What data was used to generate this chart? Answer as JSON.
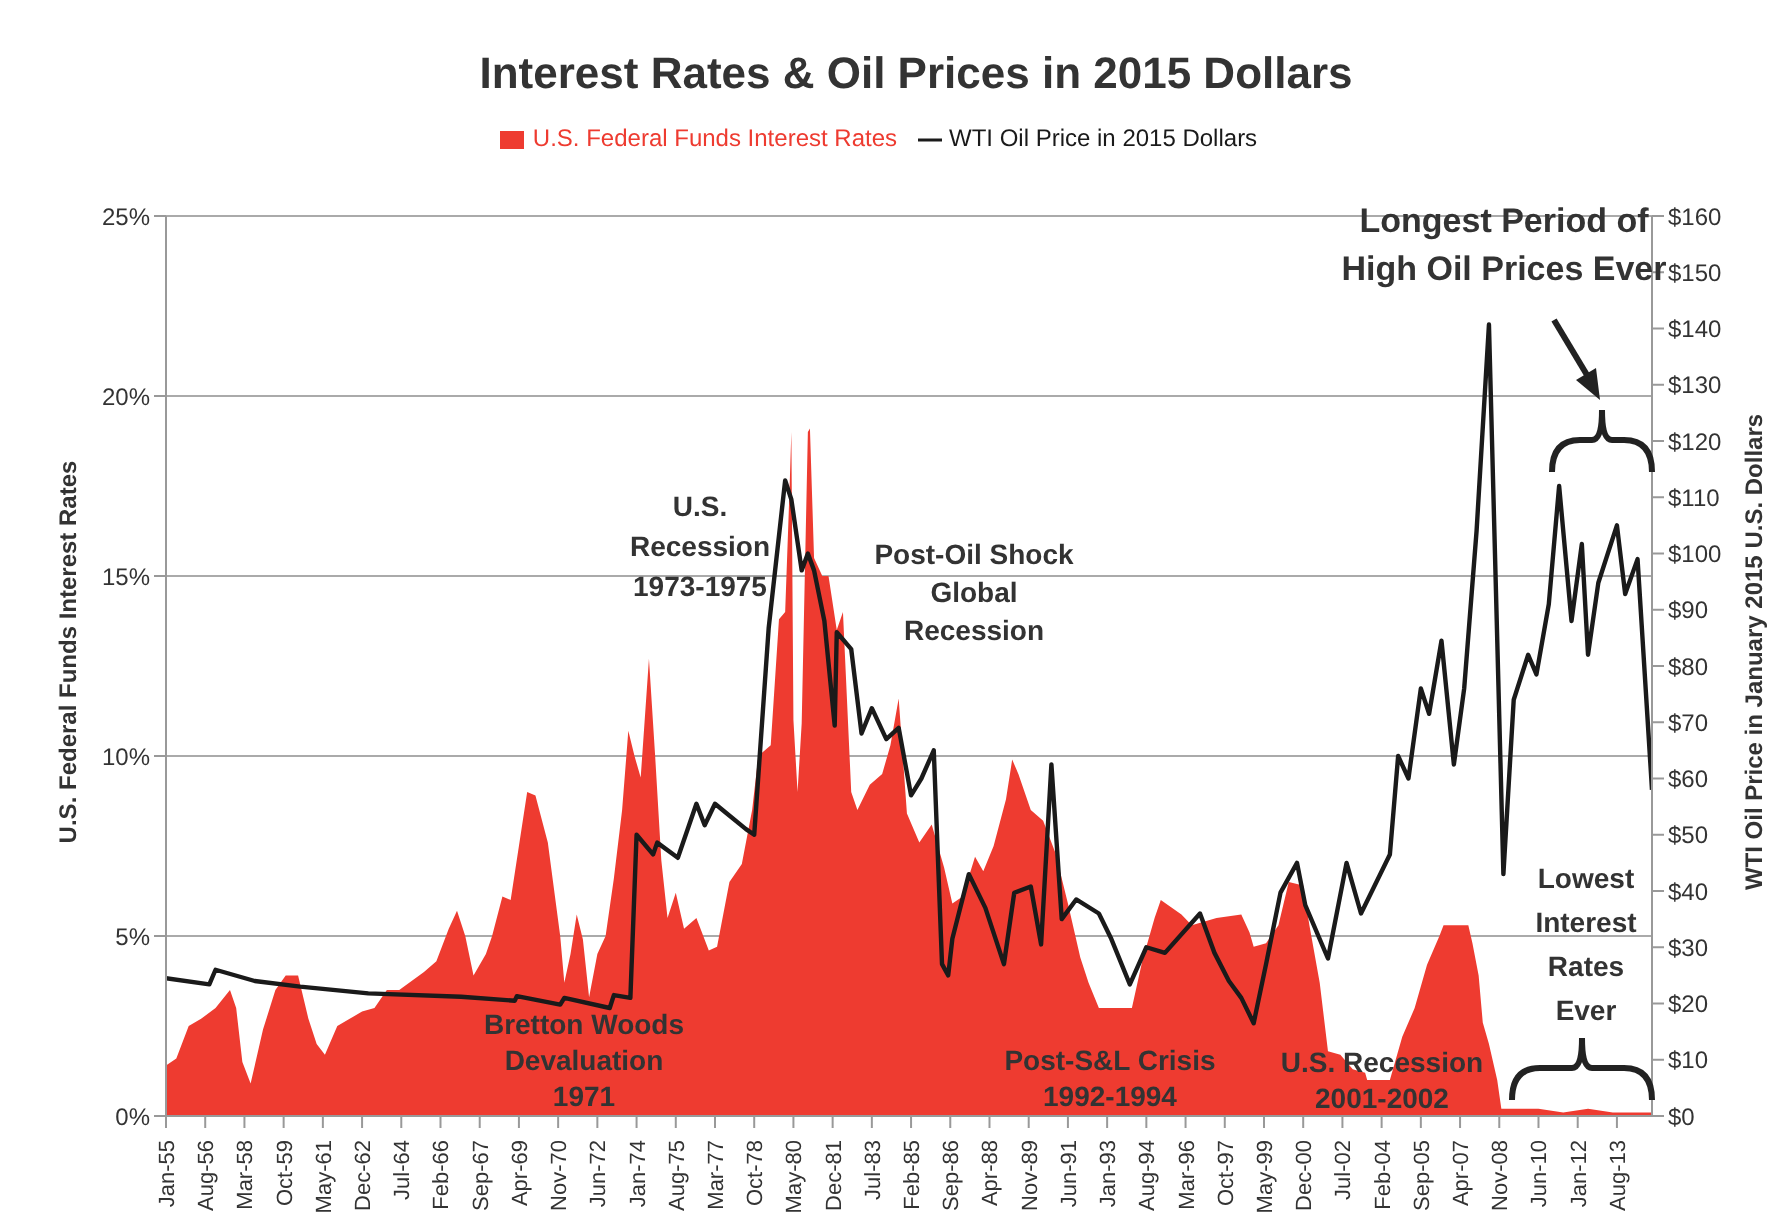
{
  "chart_data": {
    "type": "area",
    "title": "Interest Rates & Oil Prices in 2015 Dollars",
    "ylabel": "U.S. Federal Funds Interest Rates",
    "y2label": "WTI Oil Price in January 2015 U.S. Dollars",
    "legend": "top",
    "grid": "y",
    "xlim": [
      "1955-01",
      "2015-01"
    ],
    "xticks": [
      {
        "value": "1955-01",
        "label": "Jan-55"
      },
      {
        "value": "1956-08",
        "label": "Aug-56"
      },
      {
        "value": "1958-03",
        "label": "Mar-58"
      },
      {
        "value": "1959-10",
        "label": "Oct-59"
      },
      {
        "value": "1961-05",
        "label": "May-61"
      },
      {
        "value": "1962-12",
        "label": "Dec-62"
      },
      {
        "value": "1964-07",
        "label": "Jul-64"
      },
      {
        "value": "1966-02",
        "label": "Feb-66"
      },
      {
        "value": "1967-09",
        "label": "Sep-67"
      },
      {
        "value": "1969-04",
        "label": "Apr-69"
      },
      {
        "value": "1970-11",
        "label": "Nov-70"
      },
      {
        "value": "1972-06",
        "label": "Jun-72"
      },
      {
        "value": "1974-01",
        "label": "Jan-74"
      },
      {
        "value": "1975-08",
        "label": "Aug-75"
      },
      {
        "value": "1977-03",
        "label": "Mar-77"
      },
      {
        "value": "1978-10",
        "label": "Oct-78"
      },
      {
        "value": "1980-05",
        "label": "May-80"
      },
      {
        "value": "1981-12",
        "label": "Dec-81"
      },
      {
        "value": "1983-07",
        "label": "Jul-83"
      },
      {
        "value": "1985-02",
        "label": "Feb-85"
      },
      {
        "value": "1986-09",
        "label": "Sep-86"
      },
      {
        "value": "1988-04",
        "label": "Apr-88"
      },
      {
        "value": "1989-11",
        "label": "Nov-89"
      },
      {
        "value": "1991-06",
        "label": "Jun-91"
      },
      {
        "value": "1993-01",
        "label": "Jan-93"
      },
      {
        "value": "1994-08",
        "label": "Aug-94"
      },
      {
        "value": "1996-03",
        "label": "Mar-96"
      },
      {
        "value": "1997-10",
        "label": "Oct-97"
      },
      {
        "value": "1999-05",
        "label": "May-99"
      },
      {
        "value": "2000-12",
        "label": "Dec-00"
      },
      {
        "value": "2002-07",
        "label": "Jul-02"
      },
      {
        "value": "2004-02",
        "label": "Feb-04"
      },
      {
        "value": "2005-09",
        "label": "Sep-05"
      },
      {
        "value": "2007-04",
        "label": "Apr-07"
      },
      {
        "value": "2008-11",
        "label": "Nov-08"
      },
      {
        "value": "2010-06",
        "label": "Jun-10"
      },
      {
        "value": "2012-01",
        "label": "Jan-12"
      },
      {
        "value": "2013-08",
        "label": "Aug-13"
      }
    ],
    "ylim": [
      0,
      25
    ],
    "yticks": [
      {
        "value": 0,
        "label": "0%"
      },
      {
        "value": 5,
        "label": "5%"
      },
      {
        "value": 10,
        "label": "10%"
      },
      {
        "value": 15,
        "label": "15%"
      },
      {
        "value": 20,
        "label": "20%"
      },
      {
        "value": 25,
        "label": "25%"
      }
    ],
    "y2lim": [
      0,
      160
    ],
    "y2ticks": [
      {
        "value": 0,
        "label": "$0"
      },
      {
        "value": 10,
        "label": "$10"
      },
      {
        "value": 20,
        "label": "$20"
      },
      {
        "value": 30,
        "label": "$30"
      },
      {
        "value": 40,
        "label": "$40"
      },
      {
        "value": 50,
        "label": "$50"
      },
      {
        "value": 60,
        "label": "$60"
      },
      {
        "value": 70,
        "label": "$70"
      },
      {
        "value": 80,
        "label": "$80"
      },
      {
        "value": 90,
        "label": "$90"
      },
      {
        "value": 100,
        "label": "$100"
      },
      {
        "value": 110,
        "label": "$110"
      },
      {
        "value": 120,
        "label": "$120"
      },
      {
        "value": 130,
        "label": "$130"
      },
      {
        "value": 140,
        "label": "$140"
      },
      {
        "value": 150,
        "label": "$150"
      },
      {
        "value": 160,
        "label": "$160"
      }
    ],
    "series": [
      {
        "name": "U.S. Federal Funds Interest Rates",
        "color": "#ee3b30",
        "x": [
          "1955-01",
          "1955-06",
          "1955-12",
          "1956-06",
          "1957-01",
          "1957-08",
          "1957-11",
          "1958-02",
          "1958-06",
          "1958-12",
          "1959-06",
          "1959-11",
          "1960-05",
          "1960-10",
          "1961-02",
          "1961-06",
          "1961-12",
          "1962-06",
          "1962-12",
          "1963-06",
          "1963-12",
          "1964-06",
          "1965-06",
          "1965-12",
          "1966-06",
          "1966-10",
          "1967-02",
          "1967-06",
          "1967-12",
          "1968-03",
          "1968-08",
          "1968-12",
          "1969-04",
          "1969-08",
          "1969-12",
          "1970-06",
          "1970-12",
          "1971-02",
          "1971-05",
          "1971-08",
          "1971-11",
          "1972-02",
          "1972-06",
          "1972-10",
          "1973-02",
          "1973-06",
          "1973-09",
          "1973-12",
          "1974-03",
          "1974-07",
          "1974-10",
          "1975-01",
          "1975-04",
          "1975-08",
          "1975-12",
          "1976-06",
          "1976-12",
          "1977-04",
          "1977-10",
          "1978-04",
          "1978-09",
          "1978-12",
          "1979-06",
          "1979-10",
          "1980-01",
          "1980-03",
          "1980-04",
          "1980-05",
          "1980-07",
          "1980-09",
          "1980-12",
          "1981-01",
          "1981-03",
          "1981-07",
          "1981-10",
          "1982-02",
          "1982-05",
          "1982-09",
          "1982-12",
          "1983-06",
          "1983-12",
          "1984-04",
          "1984-08",
          "1984-12",
          "1985-06",
          "1985-12",
          "1986-06",
          "1986-10",
          "1987-03",
          "1987-09",
          "1988-01",
          "1988-06",
          "1988-12",
          "1989-03",
          "1989-06",
          "1989-12",
          "1990-06",
          "1990-12",
          "1991-06",
          "1991-12",
          "1992-04",
          "1992-09",
          "1993-06",
          "1994-01",
          "1994-06",
          "1994-12",
          "1995-03",
          "1995-08",
          "1996-01",
          "1996-06",
          "1997-06",
          "1998-06",
          "1998-10",
          "1998-12",
          "1999-06",
          "1999-12",
          "2000-05",
          "2000-12",
          "2001-03",
          "2001-08",
          "2001-12",
          "2002-06",
          "2002-12",
          "2003-06",
          "2003-07",
          "2004-06",
          "2004-12",
          "2005-06",
          "2005-12",
          "2006-06",
          "2006-08",
          "2007-08",
          "2007-10",
          "2008-01",
          "2008-03",
          "2008-06",
          "2008-10",
          "2008-12",
          "2009-06",
          "2010-06",
          "2011-06",
          "2012-06",
          "2013-06",
          "2014-06",
          "2015-01"
        ],
        "values": [
          1.4,
          1.6,
          2.5,
          2.7,
          3.0,
          3.5,
          3.0,
          1.5,
          0.9,
          2.4,
          3.5,
          3.9,
          3.9,
          2.7,
          2.0,
          1.7,
          2.5,
          2.7,
          2.9,
          3.0,
          3.5,
          3.5,
          4.0,
          4.3,
          5.2,
          5.7,
          5.0,
          3.9,
          4.5,
          5.0,
          6.1,
          6.0,
          7.5,
          9.0,
          8.9,
          7.6,
          5.0,
          3.7,
          4.5,
          5.6,
          4.9,
          3.3,
          4.5,
          5.0,
          6.6,
          8.5,
          10.7,
          10.0,
          9.4,
          12.7,
          10.0,
          7.1,
          5.5,
          6.2,
          5.2,
          5.5,
          4.6,
          4.7,
          6.5,
          7.0,
          8.5,
          10.0,
          10.3,
          13.8,
          14.0,
          17.2,
          19.0,
          11.0,
          9.0,
          10.9,
          19.0,
          19.1,
          15.5,
          15.0,
          15.0,
          13.5,
          14.0,
          9.0,
          8.5,
          9.2,
          9.5,
          10.3,
          11.6,
          8.4,
          7.6,
          8.1,
          6.9,
          5.9,
          6.1,
          7.2,
          6.8,
          7.5,
          8.8,
          9.9,
          9.5,
          8.5,
          8.2,
          7.3,
          5.9,
          4.4,
          3.7,
          3.0,
          3.0,
          3.0,
          4.3,
          5.5,
          6.0,
          5.8,
          5.6,
          5.3,
          5.5,
          5.6,
          5.1,
          4.7,
          4.8,
          5.3,
          6.5,
          6.4,
          5.3,
          3.7,
          1.8,
          1.7,
          1.3,
          1.2,
          1.0,
          1.0,
          2.2,
          3.0,
          4.2,
          5.0,
          5.3,
          5.3,
          4.8,
          3.9,
          2.6,
          2.0,
          1.0,
          0.2,
          0.2,
          0.2,
          0.1,
          0.2,
          0.1,
          0.1,
          0.1
        ]
      },
      {
        "name": "WTI Oil Price in 2015 Dollars",
        "type": "line",
        "axis": "y2",
        "color": "#1a1a1a",
        "x": [
          "1955-01",
          "1956-10",
          "1957-01",
          "1958-08",
          "1960-06",
          "1963-03",
          "1966-12",
          "1969-02",
          "1969-03",
          "1970-12",
          "1971-02",
          "1972-12",
          "1973-02",
          "1973-10",
          "1974-01",
          "1974-09",
          "1974-11",
          "1975-09",
          "1976-06",
          "1976-10",
          "1977-03",
          "1977-08",
          "1978-06",
          "1978-10",
          "1979-05",
          "1980-01",
          "1980-04",
          "1980-09",
          "1980-12",
          "1981-03",
          "1981-08",
          "1982-01",
          "1982-02",
          "1982-09",
          "1983-02",
          "1983-07",
          "1984-02",
          "1984-08",
          "1985-02",
          "1985-07",
          "1986-01",
          "1986-05",
          "1986-08",
          "1986-10",
          "1987-06",
          "1988-02",
          "1988-11",
          "1989-04",
          "1989-12",
          "1990-05",
          "1990-10",
          "1991-03",
          "1991-10",
          "1992-09",
          "1993-03",
          "1993-12",
          "1994-08",
          "1995-05",
          "1996-10",
          "1997-05",
          "1997-12",
          "1998-06",
          "1998-12",
          "1999-06",
          "2000-01",
          "2000-09",
          "2001-01",
          "2001-12",
          "2002-09",
          "2003-04",
          "2004-06",
          "2004-10",
          "2005-03",
          "2005-09",
          "2006-01",
          "2006-07",
          "2007-01",
          "2007-06",
          "2007-12",
          "2008-06",
          "2009-01",
          "2009-06",
          "2010-01",
          "2010-05",
          "2010-11",
          "2011-04",
          "2011-10",
          "2012-03",
          "2012-06",
          "2012-11",
          "2013-08",
          "2013-12",
          "2014-06",
          "2015-01"
        ],
        "values": [
          24.5,
          23.4,
          26.0,
          24.0,
          23.0,
          21.8,
          21.2,
          20.5,
          21.3,
          19.8,
          21.0,
          19.2,
          21.5,
          21.0,
          50.0,
          46.5,
          48.6,
          45.9,
          55.5,
          51.7,
          55.5,
          54.0,
          51.0,
          50.0,
          86.7,
          113.0,
          109.6,
          97.0,
          100.0,
          97.0,
          88.0,
          69.4,
          86.0,
          83.0,
          68.0,
          72.5,
          67.0,
          69.0,
          57.0,
          60.0,
          65.0,
          27.0,
          25.0,
          31.5,
          43.0,
          37.0,
          27.0,
          39.7,
          40.8,
          30.5,
          62.5,
          35.0,
          38.5,
          36.0,
          31.5,
          23.4,
          30.0,
          29.0,
          36.0,
          29.0,
          24.0,
          21.0,
          16.5,
          27.0,
          39.7,
          45.0,
          37.5,
          28.0,
          45.0,
          36.0,
          46.5,
          64.0,
          60.0,
          76.0,
          71.5,
          84.5,
          62.5,
          76.0,
          104.0,
          140.7,
          43.0,
          74.0,
          82.0,
          78.5,
          91.0,
          112.0,
          88.0,
          101.7,
          82.0,
          94.8,
          105.0,
          92.8,
          99.0,
          58.0
        ]
      }
    ],
    "annotations": [
      "Longest Period of\nHigh Oil Prices Ever",
      "U.S.\nRecession\n1973-1975",
      "Post-Oil Shock\nGlobal\nRecession",
      "Bretton Woods\nDevaluation\n1971",
      "Post-S&L Crisis\n1992-1994",
      "U.S. Recession\n2001-2002",
      "Lowest\nInterest\nRates\nEver"
    ]
  }
}
